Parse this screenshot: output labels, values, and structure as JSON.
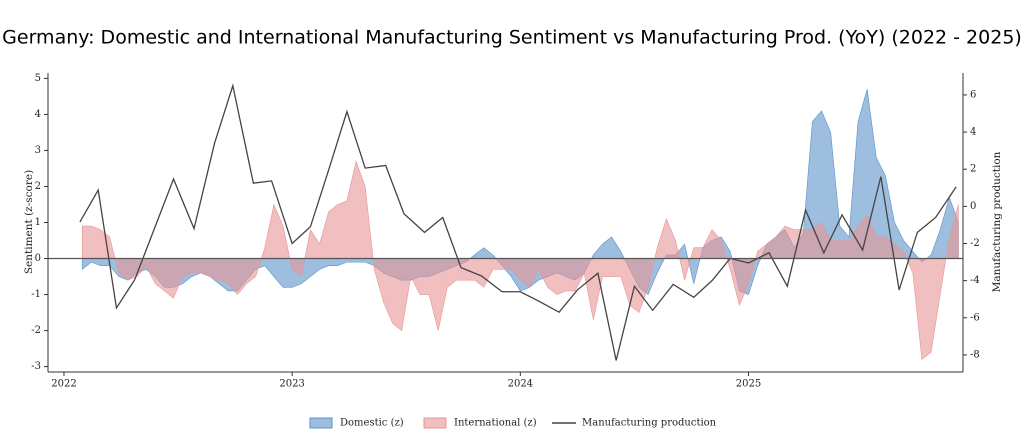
{
  "chart_data": {
    "type": "area-line",
    "title": "Germany: Domestic and International Manufacturing Sentiment  vs Manufacturing Prod. (YoY) (2022 - 2025)",
    "y_label": "Sentiment (z-score)",
    "y2_label": "Manufacturing production",
    "xlim": [
      2021.93,
      2025.94
    ],
    "ylim": [
      -3.15,
      5.15
    ],
    "y2lim": [
      -8.92,
      7.18
    ],
    "xticks": [
      2022,
      2023,
      2024,
      2025
    ],
    "yticks": [
      -3,
      -2,
      -1,
      0,
      1,
      2,
      3,
      4,
      5
    ],
    "y2ticks": [
      -8,
      -6,
      -4,
      -2,
      0,
      2,
      4,
      6
    ],
    "x": [
      2022.08,
      2022.12,
      2022.16,
      2022.2,
      2022.24,
      2022.28,
      2022.32,
      2022.36,
      2022.4,
      2022.44,
      2022.48,
      2022.52,
      2022.56,
      2022.6,
      2022.64,
      2022.68,
      2022.72,
      2022.76,
      2022.8,
      2022.84,
      2022.88,
      2022.92,
      2022.96,
      2023.0,
      2023.04,
      2023.08,
      2023.12,
      2023.16,
      2023.2,
      2023.24,
      2023.28,
      2023.32,
      2023.36,
      2023.4,
      2023.44,
      2023.48,
      2023.52,
      2023.56,
      2023.6,
      2023.64,
      2023.68,
      2023.72,
      2023.76,
      2023.8,
      2023.84,
      2023.88,
      2023.92,
      2023.96,
      2024.0,
      2024.04,
      2024.08,
      2024.12,
      2024.16,
      2024.2,
      2024.24,
      2024.28,
      2024.32,
      2024.36,
      2024.4,
      2024.44,
      2024.48,
      2024.52,
      2024.56,
      2024.6,
      2024.64,
      2024.68,
      2024.72,
      2024.76,
      2024.8,
      2024.84,
      2024.88,
      2024.92,
      2024.96,
      2025.0,
      2025.04,
      2025.08,
      2025.12,
      2025.16,
      2025.2,
      2025.24,
      2025.28,
      2025.32,
      2025.36,
      2025.4,
      2025.44,
      2025.48,
      2025.52,
      2025.56,
      2025.6,
      2025.64,
      2025.68,
      2025.72,
      2025.76,
      2025.8,
      2025.84,
      2025.88,
      2025.92
    ],
    "series": [
      {
        "name": "Domestic (z)",
        "kind": "area",
        "color": "#5b93c9",
        "values": [
          -0.3,
          -0.1,
          -0.2,
          -0.2,
          -0.5,
          -0.6,
          -0.4,
          -0.3,
          -0.5,
          -0.8,
          -0.8,
          -0.7,
          -0.5,
          -0.4,
          -0.5,
          -0.7,
          -0.9,
          -0.9,
          -0.6,
          -0.3,
          -0.2,
          -0.5,
          -0.8,
          -0.8,
          -0.7,
          -0.5,
          -0.3,
          -0.2,
          -0.2,
          -0.1,
          -0.1,
          -0.1,
          -0.2,
          -0.4,
          -0.5,
          -0.6,
          -0.6,
          -0.5,
          -0.5,
          -0.4,
          -0.3,
          -0.2,
          -0.1,
          0.1,
          0.3,
          0.1,
          -0.2,
          -0.5,
          -0.9,
          -0.8,
          -0.6,
          -0.5,
          -0.4,
          -0.5,
          -0.6,
          -0.4,
          0.1,
          0.4,
          0.6,
          0.2,
          -0.3,
          -0.8,
          -1.0,
          -0.4,
          0.1,
          0.1,
          0.4,
          -0.7,
          0.3,
          0.5,
          0.6,
          0.2,
          -0.9,
          -1.0,
          -0.2,
          0.4,
          0.6,
          0.8,
          0.3,
          0.7,
          3.8,
          4.1,
          3.5,
          0.9,
          0.6,
          3.8,
          4.7,
          2.8,
          2.3,
          1.0,
          0.5,
          0.2,
          -0.1,
          0.1,
          0.8,
          1.7,
          1.0
        ]
      },
      {
        "name": "International (z)",
        "kind": "area",
        "color": "#e89595",
        "values": [
          0.9,
          0.9,
          0.8,
          0.6,
          -0.4,
          -0.6,
          -0.5,
          -0.2,
          -0.7,
          -0.9,
          -1.1,
          -0.5,
          -0.4,
          -0.4,
          -0.5,
          -0.6,
          -0.7,
          -1.0,
          -0.7,
          -0.5,
          0.3,
          1.5,
          0.9,
          -0.3,
          -0.5,
          0.8,
          0.4,
          1.3,
          1.5,
          1.6,
          2.7,
          2.0,
          -0.3,
          -1.2,
          -1.8,
          -2.0,
          -0.5,
          -1.0,
          -1.0,
          -2.0,
          -0.8,
          -0.6,
          -0.6,
          -0.6,
          -0.8,
          -0.3,
          -0.3,
          -0.3,
          -0.6,
          -0.8,
          -0.3,
          -0.8,
          -1.0,
          -0.9,
          -0.9,
          -0.4,
          -1.7,
          -0.5,
          -0.5,
          -0.5,
          -1.3,
          -1.5,
          -0.8,
          0.3,
          1.1,
          0.5,
          -0.6,
          0.3,
          0.3,
          0.8,
          0.5,
          -0.3,
          -1.3,
          -0.7,
          0.2,
          0.4,
          0.6,
          0.9,
          0.8,
          0.8,
          0.8,
          1.0,
          0.5,
          0.5,
          0.5,
          0.9,
          1.2,
          0.6,
          0.6,
          0.4,
          0.2,
          -0.4,
          -2.8,
          -2.6,
          -1.0,
          0.6,
          1.5
        ]
      },
      {
        "name": "Manufacturing production",
        "kind": "line",
        "axis": "y2",
        "color": "#444444",
        "x": [
          2022.07,
          2022.15,
          2022.23,
          2022.31,
          2022.48,
          2022.57,
          2022.66,
          2022.74,
          2022.83,
          2022.91,
          2023.0,
          2023.08,
          2023.16,
          2023.24,
          2023.32,
          2023.41,
          2023.49,
          2023.58,
          2023.66,
          2023.74,
          2023.83,
          2023.92,
          2024.0,
          2024.08,
          2024.17,
          2024.25,
          2024.34,
          2024.42,
          2024.5,
          2024.58,
          2024.67,
          2024.76,
          2024.84,
          2024.92,
          2025.0,
          2025.09,
          2025.17,
          2025.25,
          2025.33,
          2025.41,
          2025.5,
          2025.58,
          2025.66,
          2025.74,
          2025.82,
          2025.91
        ],
        "values": [
          -0.84,
          0.88,
          -5.47,
          -3.95,
          1.47,
          -1.2,
          3.4,
          6.5,
          1.25,
          1.37,
          -2.0,
          -1.1,
          1.96,
          5.1,
          2.06,
          2.2,
          -0.4,
          -1.4,
          -0.6,
          -3.3,
          -3.75,
          -4.6,
          -4.6,
          -5.1,
          -5.7,
          -4.5,
          -3.6,
          -8.3,
          -4.3,
          -5.6,
          -4.2,
          -4.9,
          -4.0,
          -2.8,
          -3.05,
          -2.5,
          -4.3,
          -0.2,
          -2.5,
          -0.46,
          -2.35,
          1.6,
          -4.5,
          -1.4,
          -0.6,
          1.05
        ]
      }
    ]
  }
}
